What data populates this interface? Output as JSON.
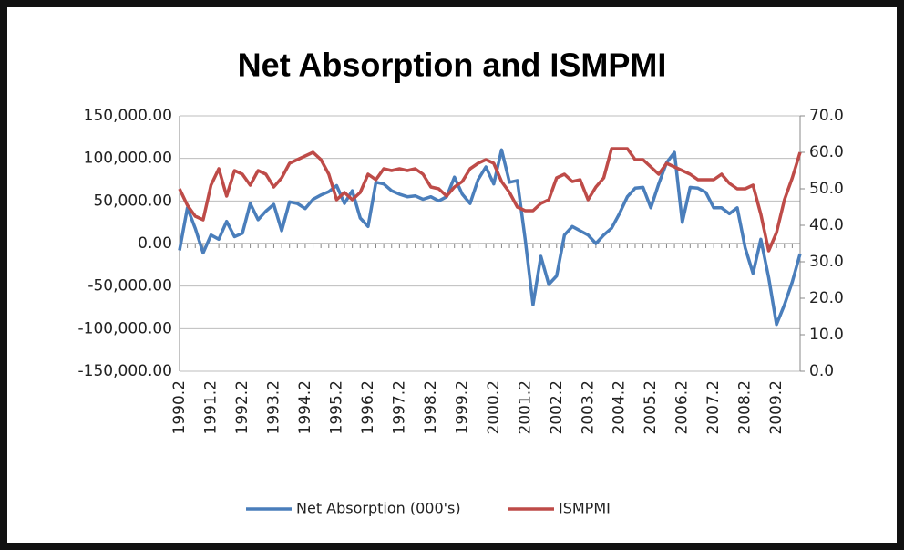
{
  "chart_data": {
    "type": "line",
    "title": "Net Absorption and ISMPMI",
    "categories": [
      "1990.2",
      null,
      null,
      null,
      "1991.2",
      null,
      null,
      null,
      "1992.2",
      null,
      null,
      null,
      "1993.2",
      null,
      null,
      null,
      "1994.2",
      null,
      null,
      null,
      "1995.2",
      null,
      null,
      null,
      "1996.2",
      null,
      null,
      null,
      "1997.2",
      null,
      null,
      null,
      "1998.2",
      null,
      null,
      null,
      "1999.2",
      null,
      null,
      null,
      "2000.2",
      null,
      null,
      null,
      "2001.2",
      null,
      null,
      null,
      "2002.2",
      null,
      null,
      null,
      "2003.2",
      null,
      null,
      null,
      "2004.2",
      null,
      null,
      null,
      "2005.2",
      null,
      null,
      null,
      "2006.2",
      null,
      null,
      null,
      "2007.2",
      null,
      null,
      null,
      "2008.2",
      null,
      null,
      null,
      "2009.2",
      null,
      null,
      null
    ],
    "series": [
      {
        "name": "Net Absorption (000's)",
        "color": "#4a7ebb",
        "axis": "y",
        "values": [
          -8000,
          42000,
          18000,
          -11000,
          10000,
          5000,
          26000,
          8000,
          12000,
          47000,
          28000,
          38000,
          46000,
          15000,
          49000,
          47000,
          41000,
          52000,
          57000,
          61000,
          68000,
          47000,
          62000,
          30000,
          20000,
          72000,
          70000,
          62000,
          58000,
          55000,
          56000,
          52000,
          55000,
          50000,
          55000,
          78000,
          58000,
          47000,
          75000,
          90000,
          70000,
          110000,
          72000,
          74000,
          5000,
          -72000,
          -15000,
          -48000,
          -38000,
          10000,
          20000,
          15000,
          10000,
          0,
          10000,
          18000,
          35000,
          55000,
          65000,
          66000,
          42000,
          70000,
          95000,
          107000,
          25000,
          66000,
          65000,
          60000,
          42000,
          42000,
          35000,
          42000,
          -5000,
          -35000,
          5000,
          -40000,
          -95000,
          -72000,
          -45000,
          -12000
        ]
      },
      {
        "name": "ISMPMI",
        "color": "#be4b48",
        "axis": "y2",
        "values": [
          50,
          45.5,
          42.5,
          41.5,
          51,
          55.5,
          48,
          55,
          54,
          51,
          55,
          54,
          50.5,
          53,
          57,
          58,
          59,
          60,
          58,
          54,
          47,
          49,
          47,
          49,
          54,
          52.5,
          55.5,
          55,
          55.5,
          55,
          55.5,
          54,
          50.5,
          50,
          48,
          50.5,
          52,
          55.5,
          57,
          58,
          57,
          52,
          49,
          45,
          44,
          44,
          46,
          47,
          53,
          54,
          52,
          52.5,
          47,
          50.5,
          53,
          61,
          61,
          61,
          58,
          58,
          56,
          54,
          57,
          56,
          55,
          54,
          52.5,
          52.5,
          52.5,
          54,
          51.5,
          50,
          50,
          51,
          43,
          33,
          38,
          47,
          53,
          60
        ]
      }
    ],
    "ylim": [
      -150000,
      150000
    ],
    "yticks": [
      {
        "value": -150000,
        "label": "-150,000.00"
      },
      {
        "value": -100000,
        "label": "-100,000.00"
      },
      {
        "value": -50000,
        "label": "-50,000.00"
      },
      {
        "value": 0,
        "label": "0.00"
      },
      {
        "value": 50000,
        "label": "50,000.00"
      },
      {
        "value": 100000,
        "label": "100,000.00"
      },
      {
        "value": 150000,
        "label": "150,000.00"
      }
    ],
    "y2lim": [
      0,
      70
    ],
    "y2ticks": [
      {
        "value": 0,
        "label": "0.0"
      },
      {
        "value": 10,
        "label": "10.0"
      },
      {
        "value": 20,
        "label": "20.0"
      },
      {
        "value": 30,
        "label": "30.0"
      },
      {
        "value": 40,
        "label": "40.0"
      },
      {
        "value": 50,
        "label": "50.0"
      },
      {
        "value": 60,
        "label": "60.0"
      },
      {
        "value": 70,
        "label": "70.0"
      }
    ],
    "grid": true,
    "legend": "bottom"
  }
}
